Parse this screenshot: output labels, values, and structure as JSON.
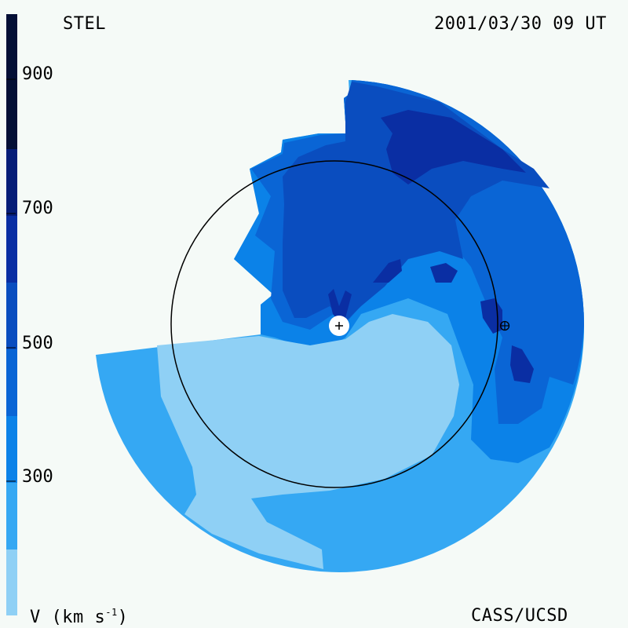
{
  "header": {
    "observatory": "STEL",
    "timestamp": "2001/03/30 09 UT"
  },
  "footer": {
    "credit": "CASS/UCSD",
    "unit_label": "V (km s",
    "unit_exponent": "-1",
    "unit_close": ")"
  },
  "colorbar": {
    "tick_labels": [
      "900",
      "700",
      "500",
      "300"
    ],
    "bands": [
      {
        "range": "<200",
        "color": "#8fd0f5"
      },
      {
        "range": "200-300",
        "color": "#35a8f3"
      },
      {
        "range": "300-400",
        "color": "#0b82e8"
      },
      {
        "range": "400-500",
        "color": "#0a65d5"
      },
      {
        "range": "500-600",
        "color": "#0a4dbf"
      },
      {
        "range": "600-700",
        "color": "#0a2ea3"
      },
      {
        "range": "700-800",
        "color": "#061d78"
      },
      {
        "range": ">800",
        "color": "#040f36"
      }
    ]
  },
  "map": {
    "markers": {
      "sun": "+",
      "earth": "⊕"
    }
  }
}
